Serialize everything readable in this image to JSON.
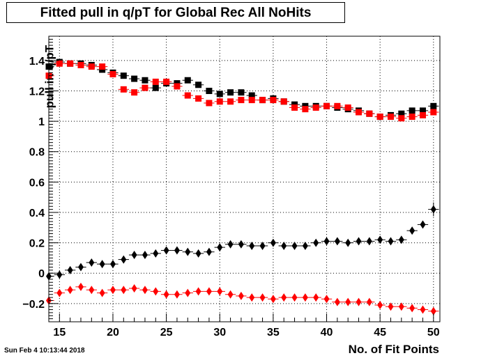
{
  "title": "Fitted pull in q/pT for Global Rec All NoHits",
  "timestamp": "Sun Feb  4 10:13:44 2018",
  "chart_data": {
    "type": "scatter",
    "title": "Fitted pull in q/pT for Global Rec All NoHits",
    "xlabel": "No. of Fit Points",
    "ylabel": "pull in q/pT",
    "xlim": [
      14,
      50.6
    ],
    "ylim": [
      -0.32,
      1.56
    ],
    "x_ticks": [
      15,
      20,
      25,
      30,
      35,
      40,
      45,
      50
    ],
    "y_ticks": [
      -0.2,
      0,
      0.2,
      0.4,
      0.6,
      0.8,
      1,
      1.2,
      1.4
    ],
    "y_tick_labels": [
      "−0.2",
      "0",
      "0.2",
      "0.4",
      "0.6",
      "0.8",
      "1",
      "1.2",
      "1.4"
    ],
    "grid": true,
    "x": [
      14,
      15,
      16,
      17,
      18,
      19,
      20,
      21,
      22,
      23,
      24,
      25,
      26,
      27,
      28,
      29,
      30,
      31,
      32,
      33,
      34,
      35,
      36,
      37,
      38,
      39,
      40,
      41,
      42,
      43,
      44,
      45,
      46,
      47,
      48,
      49,
      50
    ],
    "series": [
      {
        "marker": "square",
        "color": "#000000",
        "values": [
          1.36,
          1.39,
          1.38,
          1.38,
          1.37,
          1.34,
          1.32,
          1.3,
          1.28,
          1.27,
          1.22,
          1.25,
          1.25,
          1.27,
          1.24,
          1.2,
          1.18,
          1.19,
          1.19,
          1.17,
          1.14,
          1.15,
          1.13,
          1.11,
          1.1,
          1.1,
          1.1,
          1.09,
          1.08,
          1.07,
          1.05,
          1.03,
          1.04,
          1.05,
          1.07,
          1.07,
          1.1
        ]
      },
      {
        "marker": "square",
        "color": "#ff0000",
        "values": [
          1.3,
          1.38,
          1.38,
          1.37,
          1.36,
          1.36,
          1.31,
          1.21,
          1.19,
          1.22,
          1.26,
          1.26,
          1.23,
          1.17,
          1.15,
          1.12,
          1.13,
          1.13,
          1.14,
          1.14,
          1.14,
          1.14,
          1.13,
          1.09,
          1.08,
          1.09,
          1.1,
          1.1,
          1.09,
          1.06,
          1.05,
          1.03,
          1.03,
          1.02,
          1.03,
          1.04,
          1.06
        ]
      },
      {
        "marker": "diamond",
        "color": "#000000",
        "values": [
          -0.02,
          -0.01,
          0.02,
          0.04,
          0.07,
          0.06,
          0.06,
          0.09,
          0.12,
          0.12,
          0.13,
          0.15,
          0.15,
          0.14,
          0.13,
          0.14,
          0.17,
          0.19,
          0.19,
          0.18,
          0.18,
          0.2,
          0.18,
          0.18,
          0.18,
          0.2,
          0.21,
          0.21,
          0.2,
          0.21,
          0.21,
          0.22,
          0.21,
          0.22,
          0.28,
          0.32,
          0.42
        ]
      },
      {
        "marker": "diamond",
        "color": "#ff0000",
        "values": [
          -0.18,
          -0.13,
          -0.11,
          -0.09,
          -0.11,
          -0.13,
          -0.11,
          -0.11,
          -0.1,
          -0.11,
          -0.12,
          -0.14,
          -0.14,
          -0.13,
          -0.12,
          -0.12,
          -0.12,
          -0.14,
          -0.15,
          -0.16,
          -0.16,
          -0.17,
          -0.16,
          -0.16,
          -0.16,
          -0.16,
          -0.17,
          -0.19,
          -0.19,
          -0.19,
          -0.19,
          -0.21,
          -0.22,
          -0.22,
          -0.23,
          -0.24,
          -0.25
        ]
      }
    ]
  }
}
